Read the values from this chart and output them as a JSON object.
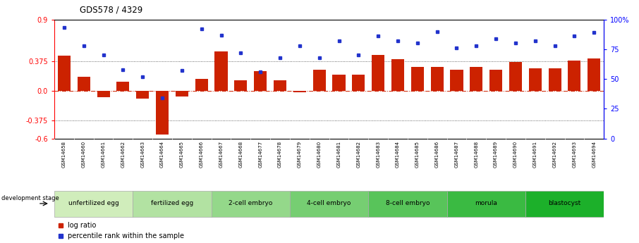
{
  "title": "GDS578 / 4329",
  "samples": [
    "GSM14658",
    "GSM14660",
    "GSM14661",
    "GSM14662",
    "GSM14663",
    "GSM14664",
    "GSM14665",
    "GSM14666",
    "GSM14667",
    "GSM14668",
    "GSM14677",
    "GSM14678",
    "GSM14679",
    "GSM14680",
    "GSM14681",
    "GSM14682",
    "GSM14683",
    "GSM14684",
    "GSM14685",
    "GSM14686",
    "GSM14687",
    "GSM14688",
    "GSM14689",
    "GSM14690",
    "GSM14691",
    "GSM14692",
    "GSM14693",
    "GSM14694"
  ],
  "log_ratio": [
    0.44,
    0.18,
    -0.08,
    0.12,
    -0.1,
    -0.55,
    -0.07,
    0.15,
    0.5,
    0.13,
    0.25,
    0.13,
    -0.02,
    0.27,
    0.2,
    0.2,
    0.45,
    0.4,
    0.3,
    0.3,
    0.27,
    0.3,
    0.27,
    0.36,
    0.28,
    0.28,
    0.38,
    0.41
  ],
  "percentile": [
    93,
    78,
    70,
    58,
    52,
    34,
    57,
    92,
    87,
    72,
    56,
    68,
    78,
    68,
    82,
    70,
    86,
    82,
    80,
    90,
    76,
    78,
    84,
    80,
    82,
    78,
    86,
    89
  ],
  "stages": [
    {
      "label": "unfertilized egg",
      "start": 0,
      "end": 4,
      "color": "#d4f0c0"
    },
    {
      "label": "fertilized egg",
      "start": 4,
      "end": 8,
      "color": "#b4e8a8"
    },
    {
      "label": "2-cell embryo",
      "start": 8,
      "end": 12,
      "color": "#94e090"
    },
    {
      "label": "4-cell embryo",
      "start": 12,
      "end": 16,
      "color": "#74d880"
    },
    {
      "label": "8-cell embryo",
      "start": 16,
      "end": 20,
      "color": "#54d068"
    },
    {
      "label": "morula",
      "start": 20,
      "end": 24,
      "color": "#34c850"
    },
    {
      "label": "blastocyst",
      "start": 24,
      "end": 28,
      "color": "#14c038"
    }
  ],
  "ylim": [
    -0.6,
    0.9
  ],
  "yticks_left": [
    -0.6,
    -0.375,
    0.0,
    0.375,
    0.9
  ],
  "yticks_right": [
    0,
    25,
    50,
    75,
    100
  ],
  "bar_color": "#cc2200",
  "dot_color": "#2233cc",
  "background_color": "#ffffff",
  "ticklabel_bg": "#d8d8d8"
}
